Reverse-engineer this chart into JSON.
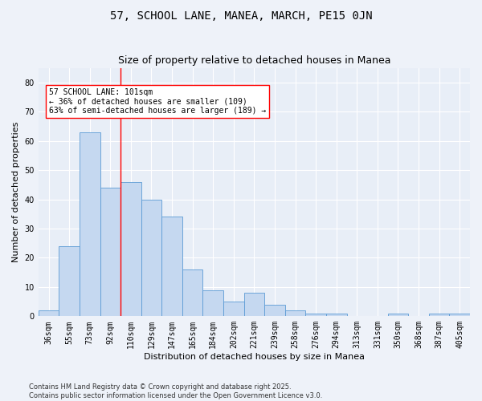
{
  "title": "57, SCHOOL LANE, MANEA, MARCH, PE15 0JN",
  "subtitle": "Size of property relative to detached houses in Manea",
  "xlabel": "Distribution of detached houses by size in Manea",
  "ylabel": "Number of detached properties",
  "categories": [
    "36sqm",
    "55sqm",
    "73sqm",
    "92sqm",
    "110sqm",
    "129sqm",
    "147sqm",
    "165sqm",
    "184sqm",
    "202sqm",
    "221sqm",
    "239sqm",
    "258sqm",
    "276sqm",
    "294sqm",
    "313sqm",
    "331sqm",
    "350sqm",
    "368sqm",
    "387sqm",
    "405sqm"
  ],
  "values": [
    2,
    24,
    63,
    44,
    46,
    40,
    34,
    16,
    9,
    5,
    8,
    4,
    2,
    1,
    1,
    0,
    0,
    1,
    0,
    1,
    1
  ],
  "bar_color": "#c5d8f0",
  "bar_edge_color": "#5b9bd5",
  "background_color": "#e8eef7",
  "fig_background_color": "#eef2f9",
  "grid_color": "#ffffff",
  "red_line_x": 3.5,
  "annotation_text": "57 SCHOOL LANE: 101sqm\n← 36% of detached houses are smaller (109)\n63% of semi-detached houses are larger (189) →",
  "ylim": [
    0,
    85
  ],
  "yticks": [
    0,
    10,
    20,
    30,
    40,
    50,
    60,
    70,
    80
  ],
  "footer": "Contains HM Land Registry data © Crown copyright and database right 2025.\nContains public sector information licensed under the Open Government Licence v3.0.",
  "title_fontsize": 10,
  "subtitle_fontsize": 9,
  "axis_label_fontsize": 8,
  "tick_fontsize": 7,
  "annotation_fontsize": 7,
  "footer_fontsize": 6
}
